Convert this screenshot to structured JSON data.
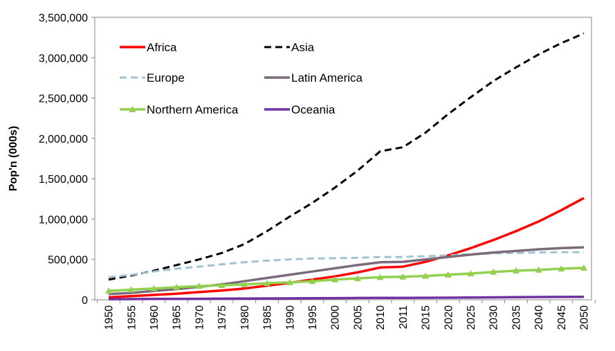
{
  "chart_data": {
    "type": "line",
    "title": "",
    "xlabel": "",
    "ylabel": "Pop'n (000s)",
    "ylim": [
      0,
      3500000
    ],
    "y_ticks": [
      0,
      500000,
      1000000,
      1500000,
      2000000,
      2500000,
      3000000,
      3500000
    ],
    "y_tick_labels": [
      "0",
      "500,000",
      "1,000,000",
      "1,500,000",
      "2,000,000",
      "2,500,000",
      "3,000,000",
      "3,500,000"
    ],
    "categories": [
      "1950",
      "1955",
      "1960",
      "1965",
      "1970",
      "1975",
      "1980",
      "1985",
      "1990",
      "1995",
      "2000",
      "2005",
      "2010",
      "2011",
      "2015",
      "2020",
      "2025",
      "2030",
      "2035",
      "2040",
      "2045",
      "2050"
    ],
    "grid": false,
    "legend_position": "top-left inside",
    "series": [
      {
        "name": "Africa",
        "color": "#ff0000",
        "style": "solid",
        "marker": "none",
        "values": [
          30000,
          45000,
          60000,
          75000,
          95000,
          115000,
          140000,
          175000,
          210000,
          250000,
          290000,
          340000,
          400000,
          410000,
          470000,
          550000,
          640000,
          740000,
          850000,
          970000,
          1110000,
          1260000
        ]
      },
      {
        "name": "Asia",
        "color": "#000000",
        "style": "dashed",
        "marker": "none",
        "values": [
          250000,
          300000,
          360000,
          430000,
          500000,
          580000,
          690000,
          850000,
          1030000,
          1200000,
          1390000,
          1600000,
          1840000,
          1890000,
          2070000,
          2300000,
          2510000,
          2710000,
          2880000,
          3040000,
          3180000,
          3300000
        ]
      },
      {
        "name": "Europe",
        "color": "#9fc3d0",
        "style": "dashed",
        "marker": "none",
        "values": [
          280000,
          310000,
          350000,
          385000,
          410000,
          440000,
          465000,
          485000,
          500000,
          510000,
          515000,
          520000,
          530000,
          530000,
          540000,
          550000,
          565000,
          575000,
          580000,
          585000,
          590000,
          590000
        ]
      },
      {
        "name": "Latin America",
        "color": "#7a6a7a",
        "style": "solid",
        "marker": "none",
        "values": [
          70000,
          85000,
          110000,
          130000,
          160000,
          190000,
          230000,
          270000,
          310000,
          350000,
          390000,
          430000,
          465000,
          470000,
          500000,
          530000,
          560000,
          585000,
          605000,
          625000,
          640000,
          650000
        ]
      },
      {
        "name": "Northern America",
        "color": "#92d050",
        "style": "solid",
        "marker": "triangle",
        "values": [
          110000,
          125000,
          140000,
          155000,
          170000,
          180000,
          190000,
          205000,
          215000,
          230000,
          250000,
          265000,
          280000,
          285000,
          295000,
          310000,
          325000,
          345000,
          360000,
          370000,
          385000,
          395000
        ]
      },
      {
        "name": "Oceania",
        "color": "#7030a0",
        "style": "solid",
        "marker": "none",
        "values": [
          8000,
          9000,
          10000,
          11000,
          12000,
          14000,
          15000,
          16000,
          17000,
          19000,
          21000,
          22000,
          23000,
          24000,
          25000,
          26000,
          28000,
          30000,
          32000,
          34000,
          35000,
          36000
        ]
      }
    ]
  }
}
